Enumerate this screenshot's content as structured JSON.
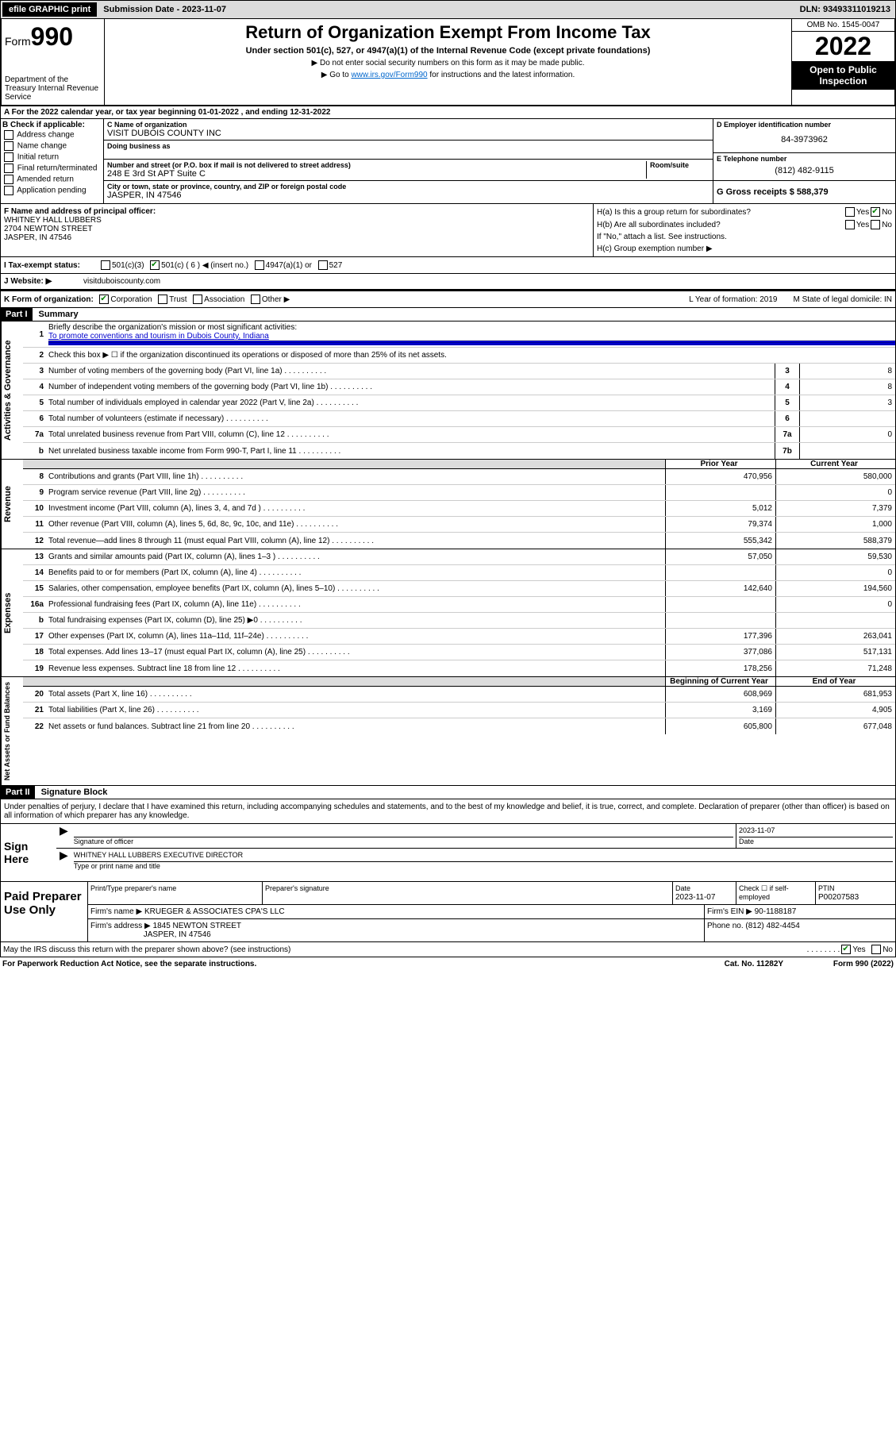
{
  "topbar": {
    "efile": "efile GRAPHIC print",
    "sub_label": "Submission Date - 2023-11-07",
    "dln": "DLN: 93493311019213"
  },
  "header": {
    "form_label": "Form",
    "form_num": "990",
    "dept": "Department of the Treasury Internal Revenue Service",
    "title": "Return of Organization Exempt From Income Tax",
    "subtitle": "Under section 501(c), 527, or 4947(a)(1) of the Internal Revenue Code (except private foundations)",
    "note1": "▶ Do not enter social security numbers on this form as it may be made public.",
    "note2_pre": "▶ Go to ",
    "note2_link": "www.irs.gov/Form990",
    "note2_post": " for instructions and the latest information.",
    "omb": "OMB No. 1545-0047",
    "year": "2022",
    "open": "Open to Public Inspection"
  },
  "row_a": {
    "text": "A For the 2022 calendar year, or tax year beginning 01-01-2022    , and ending 12-31-2022"
  },
  "col_b": {
    "label": "B Check if applicable:",
    "opts": [
      "Address change",
      "Name change",
      "Initial return",
      "Final return/terminated",
      "Amended return",
      "Application pending"
    ]
  },
  "col_c": {
    "name_label": "C Name of organization",
    "name": "VISIT DUBOIS COUNTY INC",
    "dba_label": "Doing business as",
    "addr_label": "Number and street (or P.O. box if mail is not delivered to street address)",
    "room_label": "Room/suite",
    "addr": "248 E 3rd St APT Suite C",
    "city_label": "City or town, state or province, country, and ZIP or foreign postal code",
    "city": "JASPER, IN  47546"
  },
  "col_d": {
    "ein_label": "D Employer identification number",
    "ein": "84-3973962",
    "phone_label": "E Telephone number",
    "phone": "(812) 482-9115",
    "gross_label": "G Gross receipts $ 588,379"
  },
  "col_f": {
    "label": "F  Name and address of principal officer:",
    "name": "WHITNEY HALL LUBBERS",
    "addr1": "2704 NEWTON STREET",
    "addr2": "JASPER, IN  47546"
  },
  "col_h": {
    "ha": "H(a)  Is this a group return for subordinates?",
    "hb": "H(b)  Are all subordinates included?",
    "hb_note": "If \"No,\" attach a list. See instructions.",
    "hc": "H(c)  Group exemption number ▶"
  },
  "row_i": {
    "label": "I   Tax-exempt status:",
    "o1": "501(c)(3)",
    "o2": "501(c) ( 6 ) ◀ (insert no.)",
    "o3": "4947(a)(1) or",
    "o4": "527"
  },
  "row_j": {
    "label": "J   Website: ▶",
    "val": "visitduboiscounty.com"
  },
  "row_k": {
    "label": "K Form of organization:",
    "o1": "Corporation",
    "o2": "Trust",
    "o3": "Association",
    "o4": "Other ▶",
    "l": "L Year of formation: 2019",
    "m": "M State of legal domicile: IN"
  },
  "part1": {
    "num": "Part I",
    "title": "Summary"
  },
  "gov": {
    "label": "Activities & Governance",
    "l1": "Briefly describe the organization's mission or most significant activities:",
    "l1v": "To promote conventions and tourism in Dubois County, Indiana",
    "l2": "Check this box ▶ ☐  if the organization discontinued its operations or disposed of more than 25% of its net assets.",
    "lines": [
      {
        "n": "3",
        "t": "Number of voting members of the governing body (Part VI, line 1a)",
        "bn": "3",
        "v": "8"
      },
      {
        "n": "4",
        "t": "Number of independent voting members of the governing body (Part VI, line 1b)",
        "bn": "4",
        "v": "8"
      },
      {
        "n": "5",
        "t": "Total number of individuals employed in calendar year 2022 (Part V, line 2a)",
        "bn": "5",
        "v": "3"
      },
      {
        "n": "6",
        "t": "Total number of volunteers (estimate if necessary)",
        "bn": "6",
        "v": ""
      },
      {
        "n": "7a",
        "t": "Total unrelated business revenue from Part VIII, column (C), line 12",
        "bn": "7a",
        "v": "0"
      },
      {
        "n": "b",
        "t": "Net unrelated business taxable income from Form 990-T, Part I, line 11",
        "bn": "7b",
        "v": ""
      }
    ]
  },
  "rev": {
    "label": "Revenue",
    "hdr_prior": "Prior Year",
    "hdr_cur": "Current Year",
    "lines": [
      {
        "n": "8",
        "t": "Contributions and grants (Part VIII, line 1h)",
        "p": "470,956",
        "c": "580,000"
      },
      {
        "n": "9",
        "t": "Program service revenue (Part VIII, line 2g)",
        "p": "",
        "c": "0"
      },
      {
        "n": "10",
        "t": "Investment income (Part VIII, column (A), lines 3, 4, and 7d )",
        "p": "5,012",
        "c": "7,379"
      },
      {
        "n": "11",
        "t": "Other revenue (Part VIII, column (A), lines 5, 6d, 8c, 9c, 10c, and 11e)",
        "p": "79,374",
        "c": "1,000"
      },
      {
        "n": "12",
        "t": "Total revenue—add lines 8 through 11 (must equal Part VIII, column (A), line 12)",
        "p": "555,342",
        "c": "588,379"
      }
    ]
  },
  "exp": {
    "label": "Expenses",
    "lines": [
      {
        "n": "13",
        "t": "Grants and similar amounts paid (Part IX, column (A), lines 1–3 )",
        "p": "57,050",
        "c": "59,530"
      },
      {
        "n": "14",
        "t": "Benefits paid to or for members (Part IX, column (A), line 4)",
        "p": "",
        "c": "0"
      },
      {
        "n": "15",
        "t": "Salaries, other compensation, employee benefits (Part IX, column (A), lines 5–10)",
        "p": "142,640",
        "c": "194,560"
      },
      {
        "n": "16a",
        "t": "Professional fundraising fees (Part IX, column (A), line 11e)",
        "p": "",
        "c": "0"
      },
      {
        "n": "b",
        "t": "Total fundraising expenses (Part IX, column (D), line 25) ▶0",
        "p": "grey",
        "c": "grey"
      },
      {
        "n": "17",
        "t": "Other expenses (Part IX, column (A), lines 11a–11d, 11f–24e)",
        "p": "177,396",
        "c": "263,041"
      },
      {
        "n": "18",
        "t": "Total expenses. Add lines 13–17 (must equal Part IX, column (A), line 25)",
        "p": "377,086",
        "c": "517,131"
      },
      {
        "n": "19",
        "t": "Revenue less expenses. Subtract line 18 from line 12",
        "p": "178,256",
        "c": "71,248"
      }
    ]
  },
  "net": {
    "label": "Net Assets or Fund Balances",
    "hdr_prior": "Beginning of Current Year",
    "hdr_cur": "End of Year",
    "lines": [
      {
        "n": "20",
        "t": "Total assets (Part X, line 16)",
        "p": "608,969",
        "c": "681,953"
      },
      {
        "n": "21",
        "t": "Total liabilities (Part X, line 26)",
        "p": "3,169",
        "c": "4,905"
      },
      {
        "n": "22",
        "t": "Net assets or fund balances. Subtract line 21 from line 20",
        "p": "605,800",
        "c": "677,048"
      }
    ]
  },
  "part2": {
    "num": "Part II",
    "title": "Signature Block"
  },
  "sig": {
    "text": "Under penalties of perjury, I declare that I have examined this return, including accompanying schedules and statements, and to the best of my knowledge and belief, it is true, correct, and complete. Declaration of preparer (other than officer) is based on all information of which preparer has any knowledge.",
    "here": "Sign Here",
    "officer": "Signature of officer",
    "date": "2023-11-07",
    "date_label": "Date",
    "name": "WHITNEY HALL LUBBERS  EXECUTIVE DIRECTOR",
    "name_label": "Type or print name and title"
  },
  "paid": {
    "label": "Paid Preparer Use Only",
    "h1": "Print/Type preparer's name",
    "h2": "Preparer's signature",
    "h3": "Date",
    "h3v": "2023-11-07",
    "h4": "Check ☐ if self-employed",
    "h5": "PTIN",
    "h5v": "P00207583",
    "firm_label": "Firm's name    ▶",
    "firm": "KRUEGER & ASSOCIATES CPA'S LLC",
    "ein_label": "Firm's EIN ▶",
    "ein": "90-1188187",
    "addr_label": "Firm's address ▶",
    "addr": "1845 NEWTON STREET",
    "addr2": "JASPER, IN  47546",
    "phone_label": "Phone no.",
    "phone": "(812) 482-4454"
  },
  "footer": {
    "q": "May the IRS discuss this return with the preparer shown above? (see instructions)",
    "paperwork": "For Paperwork Reduction Act Notice, see the separate instructions.",
    "cat": "Cat. No. 11282Y",
    "form": "Form 990 (2022)"
  }
}
